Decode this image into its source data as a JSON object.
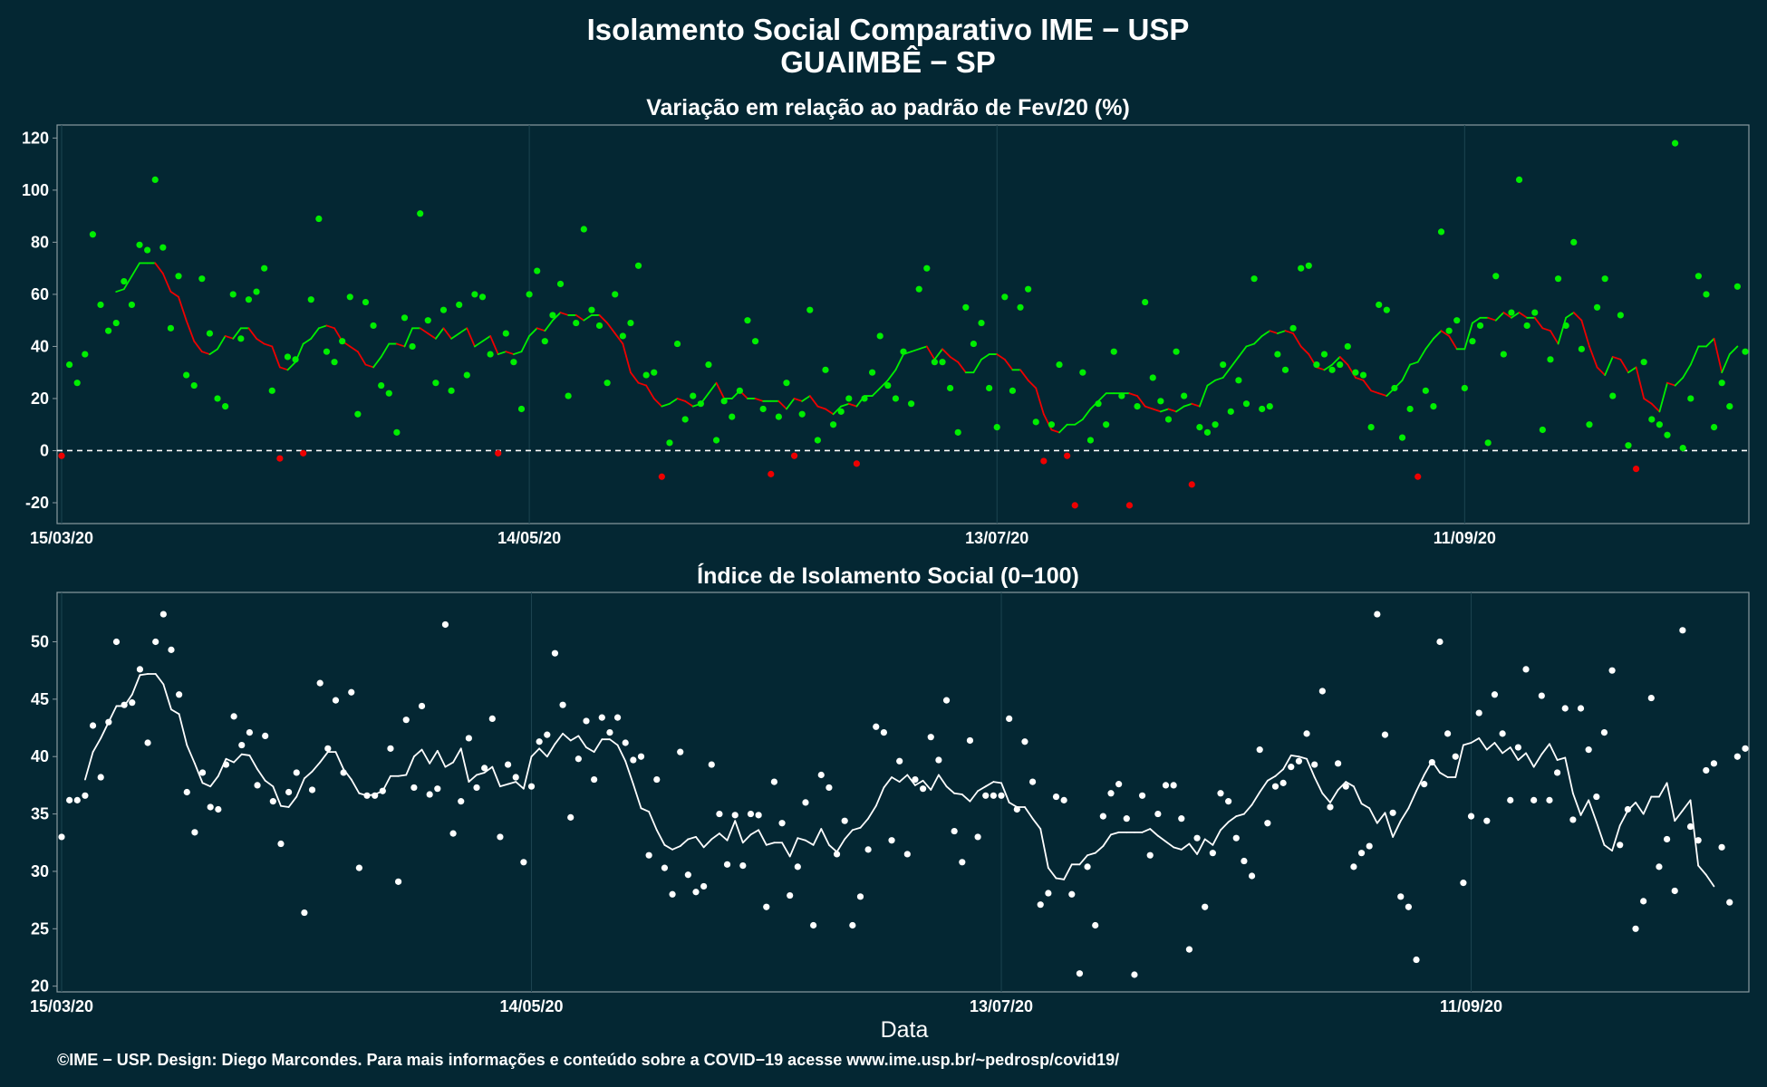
{
  "header": {
    "title_line1": "Isolamento Social Comparativo IME − USP",
    "title_line2": "GUAIMBÊ − SP"
  },
  "caption": "©IME − USP. Design: Diego Marcondes. Para mais informações e conteúdo sobre a COVID−19 acesse www.ime.usp.br/~pedrosp/covid19/",
  "colors": {
    "background": "#042733",
    "panel_border": "#8a9aa0",
    "grid": "#1c4450",
    "positive": "#00ee00",
    "negative": "#ee0000",
    "index": "#ffffff"
  },
  "chart_data": [
    {
      "type": "line",
      "title": "Variação em relação ao padrão de Fev/20 (%)",
      "xlabel": "",
      "ylabel": "",
      "x_start": "2020-03-15",
      "x_ticks": [
        "15/03/20",
        "14/05/20",
        "13/07/20",
        "11/09/20"
      ],
      "ylim": [
        -28,
        125
      ],
      "y_ticks": [
        -20,
        0,
        20,
        40,
        60,
        80,
        100,
        120
      ],
      "reference_line": 0,
      "series": [
        {
          "kind": "points",
          "values": [
            -2,
            33,
            26,
            37,
            83,
            56,
            46,
            49,
            65,
            56,
            79,
            77,
            104,
            78,
            47,
            67,
            29,
            25,
            66,
            45,
            20,
            17,
            60,
            43,
            58,
            61,
            70,
            23,
            -3,
            36,
            35,
            -1,
            58,
            89,
            38,
            34,
            42,
            59,
            14,
            57,
            48,
            25,
            22,
            7,
            51,
            40,
            91,
            50,
            26,
            54,
            23,
            56,
            29,
            60,
            59,
            37,
            -1,
            45,
            34,
            16,
            60,
            69,
            42,
            52,
            64,
            21,
            49,
            85,
            54,
            48,
            26,
            60,
            44,
            49,
            71,
            29,
            30,
            -10,
            3,
            41,
            12,
            21,
            18,
            33,
            4,
            19,
            13,
            23,
            50,
            42,
            16,
            -9,
            13,
            26,
            -2,
            14,
            54,
            4,
            31,
            10,
            15,
            20,
            -5,
            20,
            30,
            44,
            25,
            20,
            38,
            18,
            62,
            70,
            34,
            34,
            24,
            7,
            55,
            41,
            49,
            24,
            9,
            59,
            23,
            55,
            62,
            11,
            -4,
            10,
            33,
            -2,
            -21,
            30,
            4,
            18,
            10,
            38,
            21,
            -21,
            17,
            57,
            28,
            19,
            12,
            38,
            21,
            -13,
            9,
            7,
            10,
            33,
            15,
            27,
            18,
            66,
            16,
            17,
            37,
            31,
            47,
            70,
            71,
            33,
            37,
            31,
            33,
            40,
            30,
            29,
            9,
            56,
            54,
            24,
            5,
            16,
            -10,
            23,
            17,
            84,
            46,
            50,
            24,
            42,
            48,
            3,
            67,
            37,
            53,
            104,
            48,
            53,
            8,
            35,
            66,
            48,
            80,
            39,
            10,
            55,
            66,
            21,
            52,
            2,
            -7,
            34,
            12,
            10,
            6,
            118,
            1,
            20,
            67,
            60,
            9,
            26,
            17,
            63,
            38
          ]
        },
        {
          "kind": "line",
          "values": [
            null,
            null,
            null,
            null,
            null,
            null,
            null,
            61,
            62,
            67,
            72,
            72,
            72,
            68,
            61,
            59,
            50,
            42,
            38,
            37,
            39,
            44,
            43,
            47,
            47,
            43,
            41,
            40,
            32,
            31,
            34,
            41,
            43,
            47,
            48,
            47,
            42,
            40,
            38,
            33,
            32,
            36,
            41,
            41,
            40,
            47,
            47,
            45,
            43,
            47,
            43,
            45,
            47,
            40,
            42,
            44,
            37,
            38,
            37,
            38,
            44,
            47,
            46,
            50,
            53,
            52,
            52,
            50,
            52,
            52,
            49,
            45,
            41,
            30,
            26,
            25,
            20,
            17,
            18,
            20,
            19,
            17,
            18,
            22,
            26,
            20,
            20,
            23,
            20,
            20,
            19,
            19,
            19,
            16,
            20,
            19,
            21,
            17,
            16,
            14,
            17,
            18,
            17,
            21,
            21,
            24,
            27,
            31,
            37,
            38,
            39,
            40,
            35,
            39,
            36,
            34,
            30,
            30,
            35,
            37,
            37,
            35,
            31,
            31,
            27,
            24,
            14,
            8,
            7,
            10,
            10,
            12,
            16,
            19,
            22,
            22,
            22,
            22,
            21,
            17,
            16,
            15,
            16,
            15,
            17,
            18,
            17,
            25,
            27,
            28,
            32,
            36,
            40,
            41,
            44,
            46,
            45,
            46,
            45,
            40,
            37,
            32,
            31,
            33,
            36,
            33,
            28,
            27,
            23,
            22,
            21,
            24,
            27,
            33,
            34,
            39,
            43,
            46,
            44,
            39,
            39,
            49,
            51,
            51,
            50,
            53,
            51,
            53,
            51,
            51,
            47,
            46,
            41,
            51,
            53,
            50,
            40,
            32,
            29,
            36,
            35,
            30,
            32,
            20,
            18,
            15,
            26,
            25,
            28,
            33,
            40,
            40,
            43,
            30,
            37,
            40
          ]
        }
      ]
    },
    {
      "type": "line",
      "title": "Índice de Isolamento Social (0−100)",
      "xlabel": "Data",
      "ylabel": "",
      "x_start": "2020-03-15",
      "x_ticks": [
        "15/03/20",
        "14/05/20",
        "13/07/20",
        "11/09/20"
      ],
      "ylim": [
        19.5,
        54.3
      ],
      "y_ticks": [
        20,
        25,
        30,
        35,
        40,
        45,
        50
      ],
      "series": [
        {
          "kind": "points",
          "values": [
            33,
            36.2,
            36.2,
            36.6,
            42.7,
            38.2,
            43,
            50,
            44.5,
            44.7,
            47.6,
            41.2,
            50,
            52.4,
            49.3,
            45.4,
            36.9,
            33.4,
            38.6,
            35.6,
            35.4,
            39.3,
            43.5,
            41,
            42.1,
            37.5,
            41.8,
            36.1,
            32.4,
            36.9,
            38.6,
            26.4,
            37.1,
            46.4,
            40.7,
            44.9,
            38.6,
            45.6,
            30.3,
            36.6,
            36.6,
            37,
            40.7,
            29.1,
            43.2,
            37.3,
            44.4,
            36.7,
            37.2,
            51.5,
            33.3,
            36.1,
            41.6,
            37.3,
            39,
            43.3,
            33,
            39.3,
            38.2,
            30.8,
            37.4,
            41.3,
            41.9,
            49,
            44.5,
            34.7,
            39.8,
            43.1,
            38,
            43.4,
            42.1,
            43.4,
            41.2,
            39.7,
            40,
            31.4,
            38,
            30.3,
            28,
            40.4,
            29.7,
            28.2,
            28.7,
            39.3,
            35,
            30.6,
            34.9,
            30.5,
            35,
            34.9,
            26.9,
            37.8,
            34.2,
            27.9,
            30.4,
            36,
            25.3,
            38.4,
            37.3,
            31.5,
            34.4,
            25.3,
            27.8,
            31.9,
            42.6,
            42.1,
            32.7,
            39.6,
            31.5,
            38,
            37.2,
            41.7,
            39.7,
            44.9,
            33.5,
            30.8,
            41.4,
            33,
            36.6,
            36.6,
            36.6,
            43.3,
            35.4,
            41.3,
            37.8,
            27.1,
            28.1,
            36.5,
            36.2,
            28,
            21.1,
            30.4,
            25.3,
            34.8,
            36.8,
            37.6,
            34.6,
            21,
            36.6,
            31.4,
            35,
            37.5,
            37.5,
            34.6,
            23.2,
            32.9,
            26.9,
            31.6,
            36.8,
            36.1,
            32.9,
            30.9,
            29.6,
            40.6,
            34.2,
            37.4,
            37.7,
            39.1,
            39.6,
            42,
            39.3,
            45.7,
            35.6,
            39.4,
            37.4,
            30.4,
            31.6,
            32.2,
            52.4,
            41.9,
            35.1,
            27.8,
            26.9,
            22.3,
            37.6,
            39.5,
            50,
            42,
            40,
            29,
            34.8,
            43.8,
            34.4,
            45.4,
            42,
            36.2,
            40.8,
            47.6,
            36.2,
            45.3,
            36.2,
            38.6,
            44.2,
            34.5,
            44.2,
            40.6,
            36.5,
            42.1,
            47.5,
            32.3,
            35.4,
            25,
            27.4,
            45.1,
            30.4,
            32.8,
            28.3,
            51,
            33.9,
            32.7,
            38.8,
            39.4,
            32.1,
            27.3,
            40,
            40.7
          ]
        },
        {
          "kind": "line",
          "values": [
            null,
            null,
            null,
            38,
            40.4,
            41.6,
            43,
            44.4,
            44.4,
            45.4,
            47.1,
            47.2,
            47.2,
            46.3,
            44.1,
            43.7,
            41,
            39.4,
            37.7,
            37.4,
            38.3,
            39.8,
            39.5,
            40.2,
            40.1,
            38.9,
            37.9,
            37.4,
            35.7,
            35.6,
            36.5,
            38.1,
            38.7,
            39.5,
            40.4,
            40.4,
            38.9,
            38,
            36.8,
            36.6,
            36.7,
            37,
            38.3,
            38.3,
            38.4,
            40,
            40.6,
            39.4,
            40.5,
            39.1,
            39.5,
            40.7,
            37.8,
            38.4,
            38.6,
            39.1,
            37.4,
            37.6,
            37.8,
            37.2,
            40,
            40.7,
            40,
            41.1,
            42,
            41.4,
            41.8,
            40.8,
            40.4,
            41.5,
            41.5,
            41,
            39.6,
            37.6,
            35.5,
            35.2,
            33.6,
            32.3,
            31.9,
            32.2,
            32.8,
            33,
            32.1,
            32.8,
            33.3,
            32.7,
            34.4,
            32.5,
            33.2,
            33.6,
            32.3,
            32.5,
            32.5,
            31.3,
            32.9,
            32.7,
            32.3,
            33.7,
            32.3,
            31.7,
            32.8,
            33.6,
            33.8,
            34.6,
            35.7,
            37.3,
            38.2,
            37.8,
            38.4,
            37.5,
            37.9,
            37.1,
            38.4,
            37.4,
            36.8,
            36.7,
            36.1,
            37,
            37.4,
            37.8,
            37.7,
            36,
            35.6,
            35.6,
            34.6,
            33.7,
            30.3,
            29.4,
            29.3,
            30.6,
            30.6,
            31.4,
            31.6,
            32.2,
            33.2,
            33.4,
            33.4,
            33.4,
            33.4,
            33.7,
            33.1,
            32.6,
            32.1,
            31.9,
            32.4,
            31.5,
            32.8,
            32.3,
            33.6,
            34.3,
            34.8,
            35,
            35.8,
            36.9,
            37.9,
            38.3,
            38.9,
            40.1,
            40,
            39.8,
            38.2,
            36.8,
            36,
            37.1,
            37.8,
            37.4,
            35.9,
            35.5,
            34.2,
            35.1,
            33,
            34.4,
            35.5,
            37,
            38.4,
            39.6,
            38.6,
            38.2,
            38.2,
            41,
            41.2,
            41.6,
            40.6,
            41.2,
            40.3,
            40.8,
            39.7,
            40.3,
            39.1,
            40.2,
            41.1,
            39.7,
            39.9,
            36.8,
            34.9,
            36.2,
            34.3,
            32.3,
            31.8,
            34,
            35.3,
            36,
            35,
            36.5,
            36.5,
            37.7,
            34.4,
            35.3,
            36.2,
            30.5,
            29.7,
            28.7
          ]
        }
      ]
    }
  ]
}
